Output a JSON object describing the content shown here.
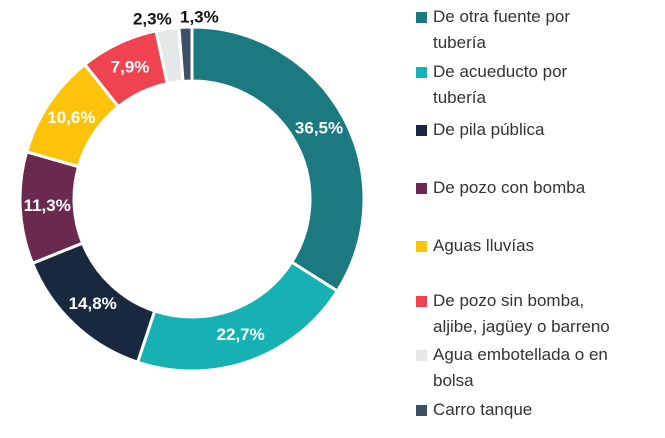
{
  "chart_data": {
    "type": "donut",
    "categories": [
      "De otra fuente por tubería",
      "De acueducto por tubería",
      "De pila pública",
      "De pozo con bomba",
      "Aguas lluvías",
      "De pozo sin bomba, aljibe, jagüey o barreno",
      "Agua embotellada o en bolsa",
      "Carro tanque"
    ],
    "values": [
      36.5,
      22.7,
      14.8,
      11.3,
      10.6,
      7.9,
      2.3,
      1.3
    ],
    "value_labels": [
      "36,5%",
      "22,7%",
      "14,8%",
      "11,3%",
      "10,6%",
      "7,9%",
      "2,3%",
      "1,3%"
    ],
    "colors": [
      "#1a7a80",
      "#16b1b2",
      "#18283f",
      "#6a2a50",
      "#fdc30a",
      "#ef4450",
      "#e5e8e8",
      "#3e4f66"
    ],
    "legend": "right"
  }
}
